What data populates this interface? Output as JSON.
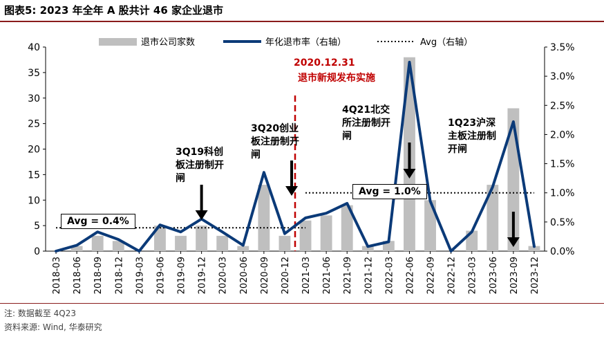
{
  "header": {
    "title": "图表5:  2023 年全年 A 股共计 46 家企业退市"
  },
  "footer": {
    "note": "注: 数据截至 4Q23",
    "source": "资料来源: Wind, 华泰研究"
  },
  "chart_data": {
    "type": "bar",
    "categories": [
      "2018-03",
      "2018-06",
      "2018-09",
      "2018-12",
      "2019-03",
      "2019-06",
      "2019-09",
      "2019-12",
      "2020-03",
      "2020-06",
      "2020-09",
      "2020-12",
      "2021-03",
      "2021-06",
      "2021-09",
      "2021-12",
      "2022-03",
      "2022-06",
      "2022-09",
      "2022-12",
      "2023-03",
      "2023-06",
      "2023-09",
      "2023-12"
    ],
    "series": [
      {
        "name": "退市公司家数",
        "type": "bar",
        "axis": "left",
        "color": "#bfbfbf",
        "values": [
          0,
          1,
          3,
          2,
          0,
          5,
          3,
          5,
          3,
          1,
          13,
          3,
          6,
          7,
          9,
          1,
          2,
          38,
          10,
          0,
          4,
          13,
          28,
          1
        ]
      },
      {
        "name": "年化退市率（右轴）",
        "type": "line",
        "axis": "right",
        "color": "#0b3a78",
        "values": [
          0.0,
          0.1,
          0.33,
          0.2,
          0.0,
          0.45,
          0.33,
          0.55,
          0.33,
          0.1,
          1.35,
          0.3,
          0.57,
          0.65,
          0.82,
          0.08,
          0.16,
          3.24,
          0.86,
          0.0,
          0.33,
          1.1,
          2.22,
          0.08
        ]
      }
    ],
    "averages": [
      {
        "label": "Avg = 0.4%",
        "value": 0.4,
        "from": "2018-03",
        "to": "2021-03"
      },
      {
        "label": "Avg = 1.0%",
        "value": 1.0,
        "from": "2021-03",
        "to": "2023-12"
      }
    ],
    "avg_legend": "Avg（右轴）",
    "left_axis": {
      "ylim": [
        0,
        40
      ],
      "ticks": [
        "0",
        "5",
        "10",
        "15",
        "20",
        "25",
        "30",
        "35",
        "40"
      ]
    },
    "right_axis": {
      "ylim": [
        0,
        3.5
      ],
      "ticks": [
        "0.0%",
        "0.5%",
        "1.0%",
        "1.5%",
        "2.0%",
        "2.5%",
        "3.0%",
        "3.5%"
      ]
    },
    "legend_position": "top",
    "grid": false,
    "event_line": {
      "category": "2020-12",
      "position_between": [
        "2020-12",
        "2021-03"
      ],
      "color": "#c00000"
    },
    "annotations": [
      {
        "id": "date",
        "lines": [
          "2020.12.31"
        ],
        "color": "#c00000"
      },
      {
        "id": "event",
        "lines": [
          "退市新规发布实施"
        ],
        "color": "#c00000"
      },
      {
        "id": "q319",
        "lines": [
          "3Q19科创",
          "板注册制开",
          "闸"
        ]
      },
      {
        "id": "q320",
        "lines": [
          "3Q20创业",
          "板注册制开",
          "闸"
        ]
      },
      {
        "id": "q421",
        "lines": [
          "4Q21北交",
          "所注册制开",
          "闸"
        ]
      },
      {
        "id": "q123",
        "lines": [
          "1Q23沪深",
          "主板注册制",
          "开闸"
        ]
      }
    ]
  }
}
